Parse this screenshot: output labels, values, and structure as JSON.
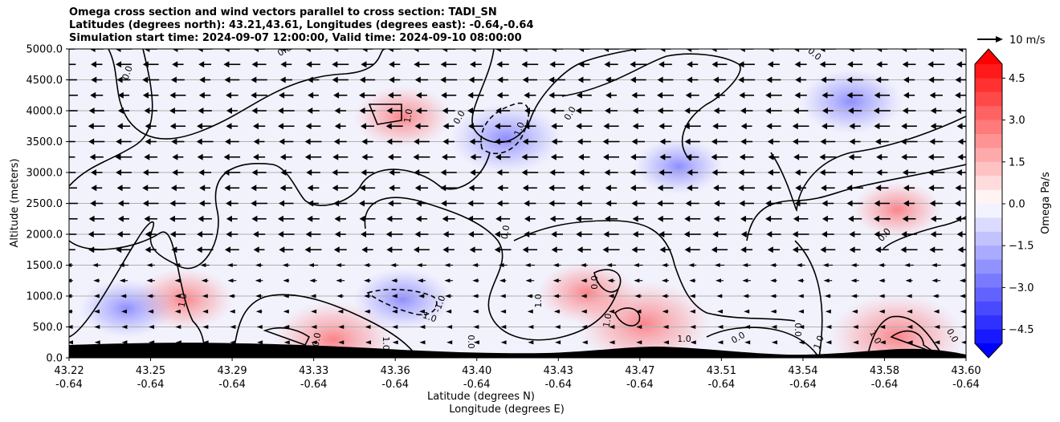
{
  "title_lines": [
    "Omega cross section and wind vectors parallel to cross section: TADI_SN",
    "Latitudes (degrees north): 43.21,43.61, Longitudes (degrees east): -0.64,-0.64",
    "Simulation start time: 2024-09-07 12:00:00, Valid time: 2024-09-10 08:00:00"
  ],
  "chart_data": {
    "type": "heatmap",
    "ylabel": "Altitude (meters)",
    "xlabel_line1": "Latitude (degrees N)",
    "xlabel_line2": "Longitude (degrees E)",
    "ylim": [
      0,
      5000
    ],
    "y_ticks": [
      "0.0",
      "500.0",
      "1000.0",
      "1500.0",
      "2000.0",
      "2500.0",
      "3000.0",
      "3500.0",
      "4000.0",
      "4500.0",
      "5000.0"
    ],
    "x_ticks": [
      {
        "lat": "43.22",
        "lon": "-0.64"
      },
      {
        "lat": "43.25",
        "lon": "-0.64"
      },
      {
        "lat": "43.29",
        "lon": "-0.64"
      },
      {
        "lat": "43.33",
        "lon": "-0.64"
      },
      {
        "lat": "43.36",
        "lon": "-0.64"
      },
      {
        "lat": "43.40",
        "lon": "-0.64"
      },
      {
        "lat": "43.43",
        "lon": "-0.64"
      },
      {
        "lat": "43.47",
        "lon": "-0.64"
      },
      {
        "lat": "43.51",
        "lon": "-0.64"
      },
      {
        "lat": "43.54",
        "lon": "-0.64"
      },
      {
        "lat": "43.58",
        "lon": "-0.64"
      },
      {
        "lat": "43.60",
        "lon": "-0.64"
      }
    ],
    "horizontal_grid": true,
    "colorbar": {
      "label": "Omega Pa/s",
      "range": [
        -5,
        5
      ],
      "ticks": [
        "4.5",
        "3.0",
        "1.5",
        "0.0",
        "−1.5",
        "−3.0",
        "−4.5"
      ],
      "colormap": "bwr"
    },
    "reference_vector": "10 m/s",
    "wind_direction": "northward-to-southward (arrows point left)",
    "omega_patches": [
      {
        "lat": 43.265,
        "alt": 950,
        "omega": 0.6
      },
      {
        "lat": 43.33,
        "alt": 300,
        "omega": 1.1
      },
      {
        "lat": 43.36,
        "alt": 3900,
        "omega": 0.6
      },
      {
        "lat": 43.405,
        "alt": 3550,
        "omega": -0.9
      },
      {
        "lat": 43.36,
        "alt": 950,
        "omega": -0.6
      },
      {
        "lat": 43.44,
        "alt": 1050,
        "omega": 0.6
      },
      {
        "lat": 43.465,
        "alt": 550,
        "omega": 1.4
      },
      {
        "lat": 43.555,
        "alt": 4150,
        "omega": -0.7
      },
      {
        "lat": 43.575,
        "alt": 350,
        "omega": 1.4
      },
      {
        "lat": 43.575,
        "alt": 2400,
        "omega": 0.4
      },
      {
        "lat": 43.48,
        "alt": 3100,
        "omega": -0.4
      },
      {
        "lat": 43.24,
        "alt": 800,
        "omega": -0.5
      }
    ],
    "contour_labels": [
      "0.0",
      "1.0",
      "-1.0"
    ],
    "colors": {
      "terrain": "#000000",
      "vectors": "#000000",
      "grid": "#b0b0b0"
    }
  }
}
